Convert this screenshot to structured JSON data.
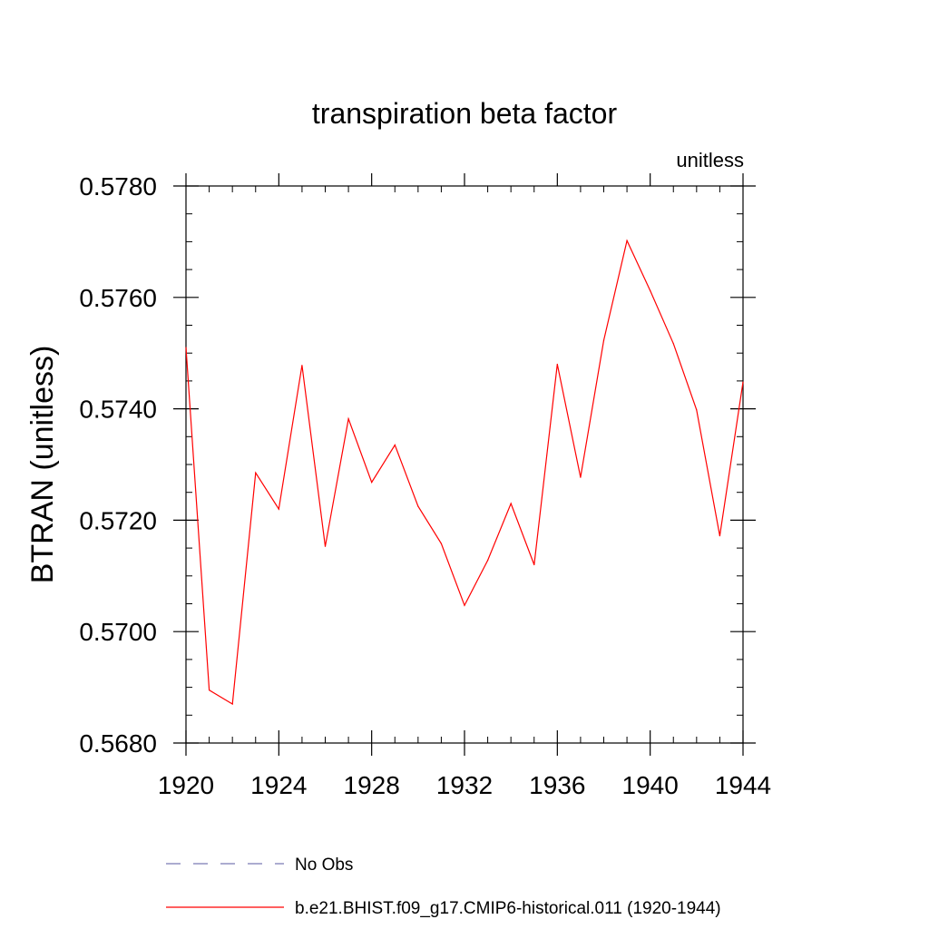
{
  "chart_data": {
    "type": "line",
    "title": "transpiration beta factor",
    "units_label": "unitless",
    "ylabel": "BTRAN  (unitless)",
    "xlim": [
      1920,
      1944
    ],
    "ylim": [
      0.568,
      0.578
    ],
    "x_ticks": [
      1920,
      1924,
      1928,
      1932,
      1936,
      1940,
      1944
    ],
    "x_tick_labels": [
      "1920",
      "1924",
      "1928",
      "1932",
      "1936",
      "1940",
      "1944"
    ],
    "y_ticks": [
      0.568,
      0.57,
      0.572,
      0.574,
      0.576,
      0.578
    ],
    "y_tick_labels": [
      "0.5680",
      "0.5700",
      "0.5720",
      "0.5740",
      "0.5760",
      "0.5780"
    ],
    "series": [
      {
        "name": "b.e21.BHIST.f09_g17.CMIP6-historical.011 (1920-1944)",
        "color": "#ff0000",
        "x": [
          1920,
          1921,
          1922,
          1923,
          1924,
          1925,
          1926,
          1927,
          1928,
          1929,
          1930,
          1931,
          1932,
          1933,
          1934,
          1935,
          1936,
          1937,
          1938,
          1939,
          1940,
          1941,
          1942,
          1943,
          1944
        ],
        "y": [
          0.5751,
          0.56895,
          0.5687,
          0.57285,
          0.5722,
          0.57478,
          0.57153,
          0.57382,
          0.57268,
          0.57335,
          0.57225,
          0.57158,
          0.57047,
          0.57128,
          0.5723,
          0.5712,
          0.5748,
          0.57277,
          0.57523,
          0.57702,
          0.57612,
          0.57517,
          0.57398,
          0.57172,
          0.57448
        ]
      }
    ],
    "legend": {
      "placement": "bottom-left",
      "entries": [
        {
          "label": "No Obs",
          "style": "dashed",
          "color": "#7b7bb5"
        },
        {
          "label": "b.e21.BHIST.f09_g17.CMIP6-historical.011 (1920-1944)",
          "style": "solid",
          "color": "#ff0000"
        }
      ]
    },
    "grid": false
  }
}
